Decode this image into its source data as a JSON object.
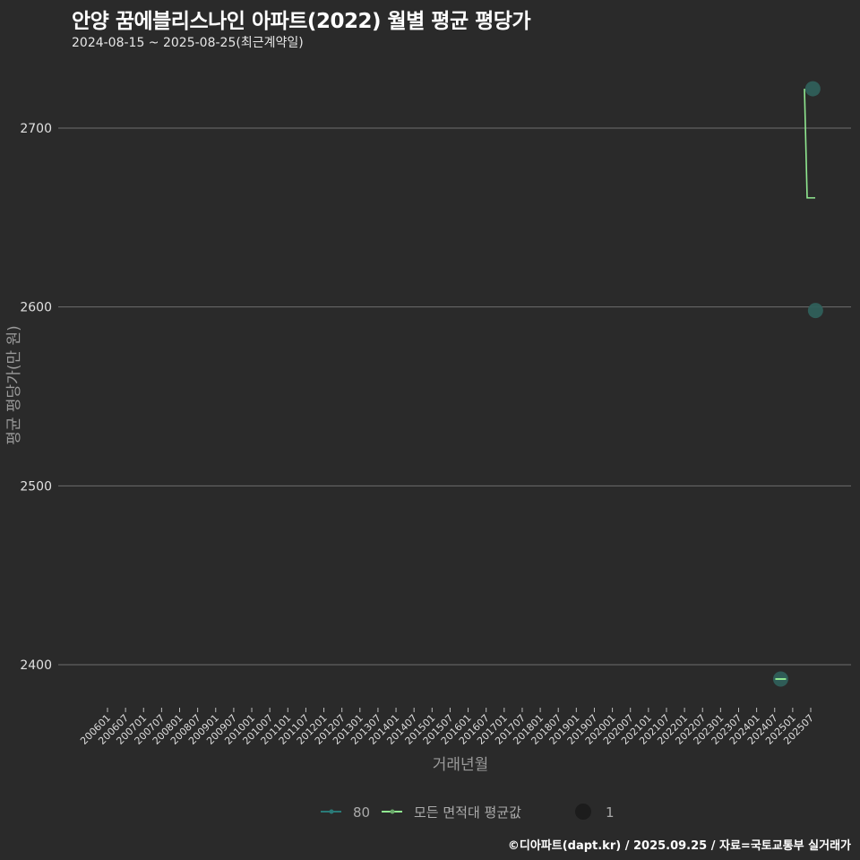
{
  "header": {
    "title": "안양 꿈에블리스나인 아파트(2022) 월별 평균 평당가",
    "subtitle": "2024-08-15 ~ 2025-08-25(최근계약일)"
  },
  "footer": {
    "credit": "©디아파트(dapt.kr) / 2025.09.25 / 자료=국토교통부 실거래가"
  },
  "legend": {
    "series_80": "80",
    "series_avg": "모든 면적대 평균값",
    "size_label": "1"
  },
  "colors": {
    "background": "#2a2a2a",
    "grid": "#6e6e6e",
    "series_80": "#2f5f5a",
    "series_80_line": "#2a7a78",
    "series_avg": "#90e890"
  },
  "chart_data": {
    "type": "line",
    "title": "안양 꿈에블리스나인 아파트(2022) 월별 평균 평당가",
    "subtitle": "2024-08-15 ~ 2025-08-25(최근계약일)",
    "xlabel": "거래년월",
    "ylabel": "평균 평당가(만 원)",
    "ylim": [
      2350,
      2730
    ],
    "yticks": [
      2400,
      2500,
      2600,
      2700
    ],
    "grid": true,
    "legend_position": "bottom",
    "x_tick_labels": [
      "200601",
      "200607",
      "200701",
      "200707",
      "200801",
      "200807",
      "200901",
      "200907",
      "201001",
      "201007",
      "201101",
      "201107",
      "201201",
      "201207",
      "201301",
      "201307",
      "201401",
      "201407",
      "201501",
      "201507",
      "201601",
      "201607",
      "201701",
      "201707",
      "201801",
      "201807",
      "201901",
      "201907",
      "202001",
      "202007",
      "202101",
      "202107",
      "202201",
      "202207",
      "202301",
      "202307",
      "202401",
      "202407",
      "202501",
      "202507"
    ],
    "series": [
      {
        "name": "80",
        "kind": "points",
        "points": [
          {
            "x": "202409",
            "y": 2392
          },
          {
            "x": "202508",
            "y": 2722
          },
          {
            "x": "202508",
            "y": 2598
          }
        ]
      },
      {
        "name": "모든 면적대 평균값",
        "kind": "step-line",
        "points": [
          {
            "x": "202506",
            "y": 2722
          },
          {
            "x": "202507",
            "y": 2661
          },
          {
            "x": "202508",
            "y": 2661
          }
        ]
      }
    ]
  }
}
